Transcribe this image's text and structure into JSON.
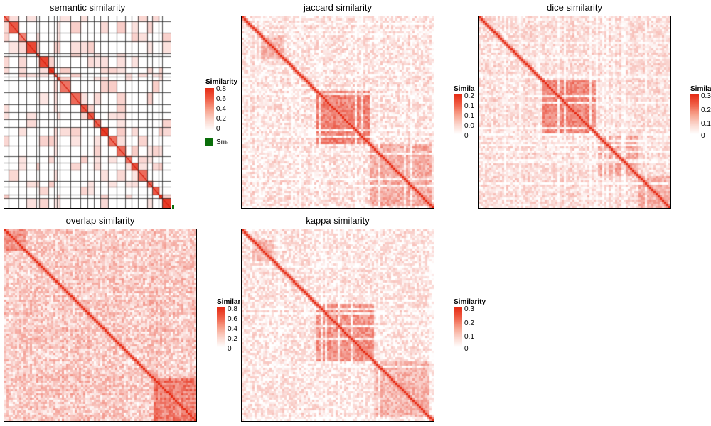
{
  "colors": {
    "low": "#ffffff",
    "high": "#e52b14",
    "small_group": "#0a6e0a",
    "grid": "#000000"
  },
  "chart_data": [
    {
      "type": "heatmap",
      "title": "semantic similarity",
      "matrix": "symmetric term-by-term similarity, clustered, with block borders",
      "legend": {
        "title": "Similarity",
        "ticks": [
          "0.8",
          "0.6",
          "0.4",
          "0.2",
          "0"
        ],
        "value_range": [
          0,
          0.8
        ]
      },
      "extra_legend": {
        "label": "Small",
        "color": "#0a6e0a"
      },
      "diagonal_blocks": 24
    },
    {
      "type": "heatmap",
      "title": "jaccard similarity",
      "legend": {
        "title": "Similarity",
        "ticks": [
          "0.2",
          "0.1",
          "0.1",
          "0.0",
          "0"
        ],
        "value_range": [
          0,
          0.25
        ]
      }
    },
    {
      "type": "heatmap",
      "title": "dice similarity",
      "legend": {
        "title": "Similarity",
        "ticks": [
          "0.3",
          "0.2",
          "0.1",
          "0"
        ],
        "value_range": [
          0,
          0.35
        ]
      }
    },
    {
      "type": "heatmap",
      "title": "overlap similarity",
      "legend": {
        "title": "Similarity",
        "ticks": [
          "0.8",
          "0.6",
          "0.4",
          "0.2",
          "0"
        ],
        "value_range": [
          0,
          0.8
        ]
      }
    },
    {
      "type": "heatmap",
      "title": "kappa similarity",
      "legend": {
        "title": "Similarity",
        "ticks": [
          "0.3",
          "0.2",
          "0.1",
          "0"
        ],
        "value_range": [
          0,
          0.3
        ]
      }
    }
  ]
}
